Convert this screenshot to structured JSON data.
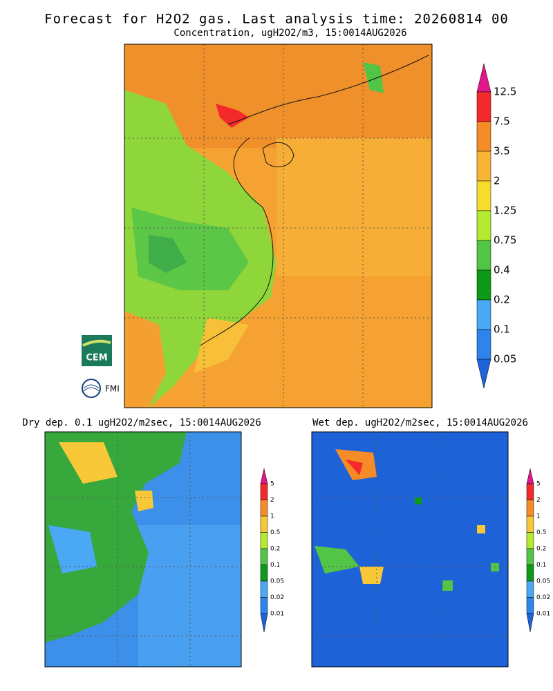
{
  "title": "Forecast for H2O2 gas. Last analysis time: 20260814 00",
  "subtitle": "Concentration, ugH2O2/m3, 15:0014AUG2026",
  "main_colorbar": {
    "labels": [
      "12.5",
      "7.5",
      "3.5",
      "2",
      "1.25",
      "0.75",
      "0.4",
      "0.2",
      "0.1",
      "0.05"
    ],
    "colors": [
      "#e0188c",
      "#f42a2a",
      "#f58c28",
      "#f8b434",
      "#f8dc2c",
      "#b4ea30",
      "#52c446",
      "#0c9a18",
      "#4aa8f4",
      "#2c84ec",
      "#1e64d8"
    ]
  },
  "dry_panel": {
    "title": "Dry dep. 0.1 ugH2O2/m2sec, 15:0014AUG2026",
    "colorbar": {
      "labels": [
        "5",
        "2",
        "1",
        "0.5",
        "0.2",
        "0.1",
        "0.05",
        "0.02",
        "0.01"
      ],
      "colors": [
        "#e0188c",
        "#f42a2a",
        "#f58c28",
        "#f8c838",
        "#b4ea30",
        "#52c446",
        "#0c9a18",
        "#4aa8f4",
        "#2c84ec",
        "#1e64d8"
      ]
    }
  },
  "wet_panel": {
    "title": "Wet dep. ugH2O2/m2sec, 15:0014AUG2026",
    "colorbar": {
      "labels": [
        "5",
        "2",
        "1",
        "0.5",
        "0.2",
        "0.1",
        "0.05",
        "0.02",
        "0.01"
      ],
      "colors": [
        "#e0188c",
        "#f42a2a",
        "#f58c28",
        "#f8c838",
        "#b4ea30",
        "#52c446",
        "#0c9a18",
        "#4aa8f4",
        "#2c84ec",
        "#1e64d8"
      ]
    }
  },
  "logos": [
    "CEM",
    "FMI"
  ]
}
